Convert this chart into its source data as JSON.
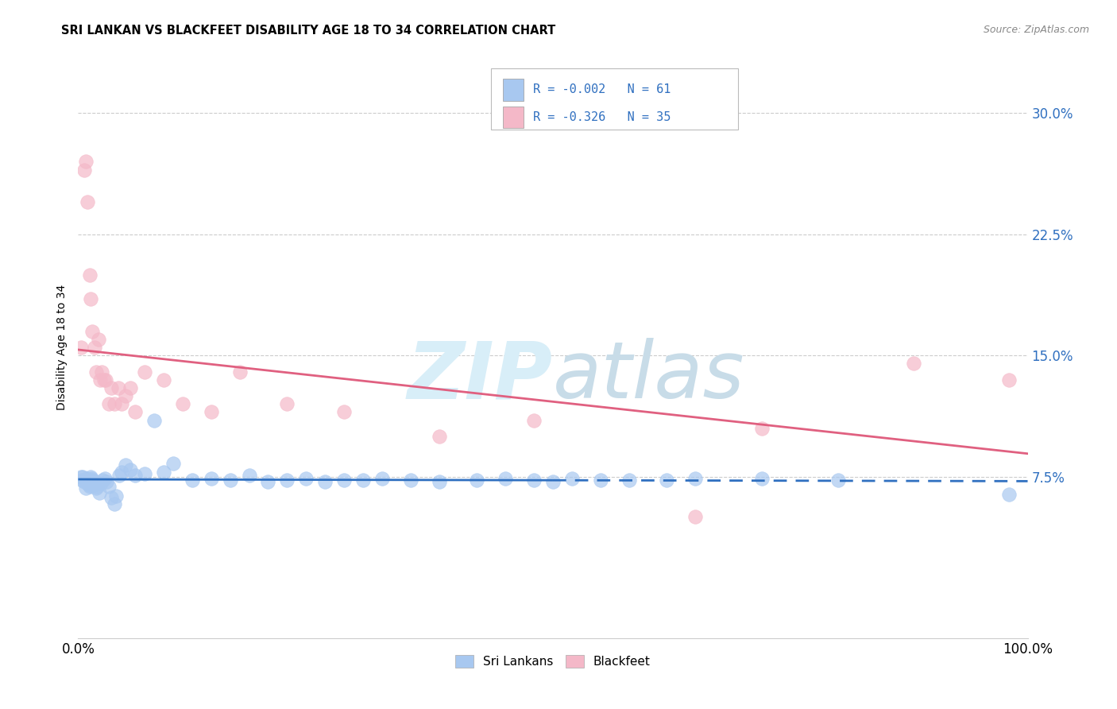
{
  "title": "SRI LANKAN VS BLACKFEET DISABILITY AGE 18 TO 34 CORRELATION CHART",
  "source": "Source: ZipAtlas.com",
  "ylabel": "Disability Age 18 to 34",
  "xlim": [
    0.0,
    1.0
  ],
  "ylim": [
    -0.025,
    0.335
  ],
  "yticks": [
    0.075,
    0.15,
    0.225,
    0.3
  ],
  "ytick_labels": [
    "7.5%",
    "15.0%",
    "22.5%",
    "30.0%"
  ],
  "xticks": [
    0.0,
    0.25,
    0.5,
    0.75,
    1.0
  ],
  "xtick_labels": [
    "0.0%",
    "",
    "",
    "",
    "100.0%"
  ],
  "sri_lankan_color": "#a8c8f0",
  "blackfeet_color": "#f4b8c8",
  "trendline_sri_color": "#3070c0",
  "trendline_blackfeet_color": "#e06080",
  "watermark_color": "#d8eef8",
  "sri_lankans_R": -0.002,
  "sri_lankans_N": 61,
  "blackfeet_R": -0.326,
  "blackfeet_N": 35,
  "legend_text_color": "#3070c0",
  "stats_box_color": "#cccccc",
  "sri_lankans_x": [
    0.003,
    0.004,
    0.005,
    0.006,
    0.007,
    0.008,
    0.009,
    0.01,
    0.011,
    0.012,
    0.013,
    0.014,
    0.015,
    0.016,
    0.017,
    0.018,
    0.019,
    0.02,
    0.022,
    0.024,
    0.026,
    0.028,
    0.03,
    0.032,
    0.035,
    0.038,
    0.04,
    0.043,
    0.046,
    0.05,
    0.055,
    0.06,
    0.07,
    0.08,
    0.09,
    0.1,
    0.12,
    0.14,
    0.16,
    0.18,
    0.2,
    0.22,
    0.24,
    0.26,
    0.28,
    0.3,
    0.32,
    0.35,
    0.38,
    0.42,
    0.45,
    0.48,
    0.5,
    0.52,
    0.55,
    0.58,
    0.62,
    0.65,
    0.72,
    0.8,
    0.98
  ],
  "sri_lankans_y": [
    0.075,
    0.073,
    0.075,
    0.072,
    0.073,
    0.068,
    0.074,
    0.071,
    0.07,
    0.069,
    0.075,
    0.074,
    0.073,
    0.07,
    0.071,
    0.072,
    0.068,
    0.069,
    0.065,
    0.071,
    0.073,
    0.074,
    0.072,
    0.069,
    0.062,
    0.058,
    0.063,
    0.076,
    0.078,
    0.082,
    0.079,
    0.076,
    0.077,
    0.11,
    0.078,
    0.083,
    0.073,
    0.074,
    0.073,
    0.076,
    0.072,
    0.073,
    0.074,
    0.072,
    0.073,
    0.073,
    0.074,
    0.073,
    0.072,
    0.073,
    0.074,
    0.073,
    0.072,
    0.074,
    0.073,
    0.073,
    0.073,
    0.074,
    0.074,
    0.073,
    0.064
  ],
  "blackfeet_x": [
    0.003,
    0.006,
    0.008,
    0.01,
    0.012,
    0.013,
    0.015,
    0.017,
    0.019,
    0.021,
    0.023,
    0.025,
    0.027,
    0.029,
    0.032,
    0.035,
    0.038,
    0.042,
    0.046,
    0.05,
    0.055,
    0.06,
    0.07,
    0.09,
    0.11,
    0.14,
    0.17,
    0.22,
    0.28,
    0.38,
    0.48,
    0.72,
    0.88,
    0.98,
    0.65
  ],
  "blackfeet_y": [
    0.155,
    0.265,
    0.27,
    0.245,
    0.2,
    0.185,
    0.165,
    0.155,
    0.14,
    0.16,
    0.135,
    0.14,
    0.135,
    0.135,
    0.12,
    0.13,
    0.12,
    0.13,
    0.12,
    0.125,
    0.13,
    0.115,
    0.14,
    0.135,
    0.12,
    0.115,
    0.14,
    0.12,
    0.115,
    0.1,
    0.11,
    0.105,
    0.145,
    0.135,
    0.05
  ],
  "background_color": "#ffffff",
  "grid_color": "#cccccc"
}
